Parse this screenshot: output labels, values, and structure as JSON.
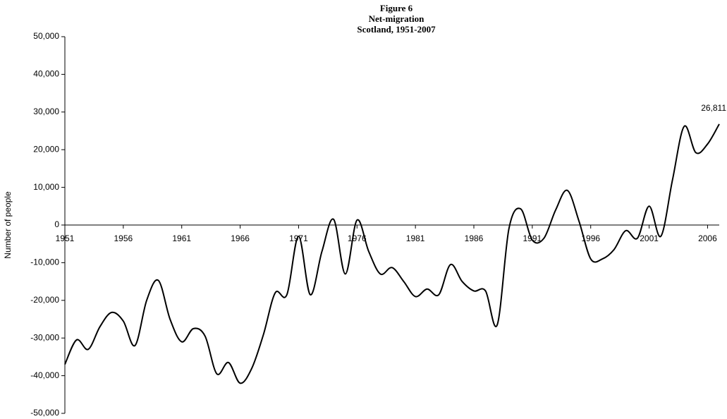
{
  "chart_data": {
    "type": "line",
    "title": [
      "Figure 6",
      "Net-migration",
      "Scotland, 1951-2007"
    ],
    "y_label": "Number of people",
    "x": [
      1951,
      1952,
      1953,
      1954,
      1955,
      1956,
      1957,
      1958,
      1959,
      1960,
      1961,
      1962,
      1963,
      1964,
      1965,
      1966,
      1967,
      1968,
      1969,
      1970,
      1971,
      1972,
      1973,
      1974,
      1975,
      1976,
      1977,
      1978,
      1979,
      1980,
      1981,
      1982,
      1983,
      1984,
      1985,
      1986,
      1987,
      1988,
      1989,
      1990,
      1991,
      1992,
      1993,
      1994,
      1995,
      1996,
      1997,
      1998,
      1999,
      2000,
      2001,
      2002,
      2003,
      2004,
      2005,
      2006,
      2007
    ],
    "values": [
      -37000,
      -30500,
      -33000,
      -27000,
      -23200,
      -25500,
      -32000,
      -20000,
      -14700,
      -25000,
      -31000,
      -27500,
      -29500,
      -39500,
      -36500,
      -42000,
      -38000,
      -29000,
      -18000,
      -18500,
      -3000,
      -18500,
      -7000,
      1500,
      -13000,
      1300,
      -7000,
      -13000,
      -11300,
      -15000,
      -19000,
      -17000,
      -18500,
      -10500,
      -15000,
      -17500,
      -17500,
      -26500,
      -1000,
      4300,
      -4000,
      -3500,
      4000,
      9200,
      1000,
      -9000,
      -9000,
      -6500,
      -1500,
      -3500,
      5000,
      -3000,
      12000,
      26200,
      19200,
      21500,
      26811
    ],
    "value_labels": [
      null,
      null,
      null,
      null,
      null,
      null,
      null,
      null,
      null,
      null,
      null,
      null,
      null,
      null,
      null,
      null,
      null,
      null,
      null,
      null,
      null,
      null,
      null,
      null,
      null,
      null,
      null,
      null,
      null,
      null,
      null,
      null,
      null,
      null,
      null,
      null,
      null,
      null,
      null,
      null,
      null,
      null,
      null,
      null,
      null,
      null,
      null,
      null,
      null,
      null,
      null,
      null,
      null,
      null,
      null,
      null,
      "26,811"
    ],
    "color": "#000000",
    "xlim": [
      1951,
      2007
    ],
    "xticks": [
      1951,
      1956,
      1961,
      1966,
      1971,
      1976,
      1981,
      1986,
      1991,
      1996,
      2001,
      2006
    ],
    "ylim": [
      -50000,
      50000
    ],
    "yticks": [
      {
        "value": -50000,
        "label": "-50,000"
      },
      {
        "value": -40000,
        "label": "-40,000"
      },
      {
        "value": -30000,
        "label": "-30,000"
      },
      {
        "value": -20000,
        "label": "-20,000"
      },
      {
        "value": -10000,
        "label": "-10,000"
      },
      0,
      {
        "value": 10000,
        "label": "10,000"
      },
      {
        "value": 20000,
        "label": "20,000"
      },
      {
        "value": 30000,
        "label": "30,000"
      },
      {
        "value": 40000,
        "label": "40,000"
      },
      {
        "value": 50000,
        "label": "50,000"
      }
    ],
    "grid": false
  }
}
